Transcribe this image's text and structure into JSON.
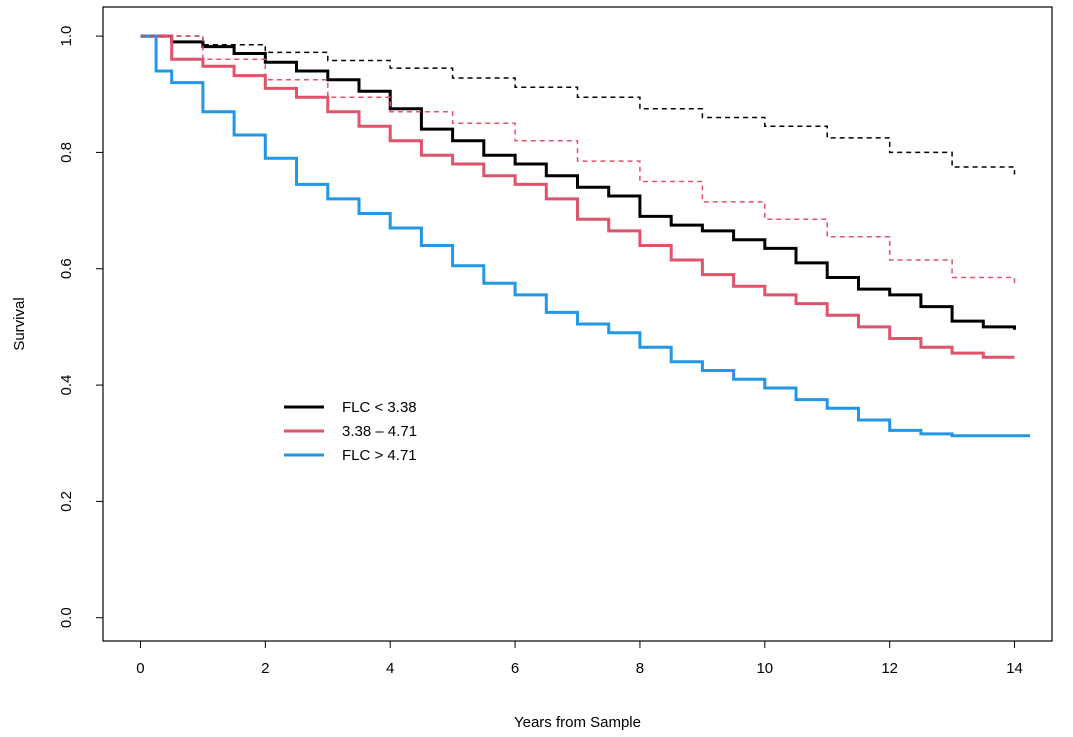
{
  "chart_data": {
    "type": "line",
    "title": "",
    "xlabel": "Years from Sample",
    "ylabel": "Survival",
    "xlim": [
      -0.6,
      14.6
    ],
    "ylim": [
      -0.04,
      1.05
    ],
    "x_ticks": [
      0,
      2,
      4,
      6,
      8,
      10,
      12,
      14
    ],
    "y_ticks": [
      0.0,
      0.2,
      0.4,
      0.6,
      0.8,
      1.0
    ],
    "x_tick_labels": [
      "0",
      "2",
      "4",
      "6",
      "8",
      "10",
      "12",
      "14"
    ],
    "y_tick_labels": [
      "0.0",
      "0.2",
      "0.4",
      "0.6",
      "0.8",
      "1.0"
    ],
    "grid": false,
    "legend_position": "center-left",
    "series": [
      {
        "name": "FLC < 3.38",
        "color": "#000000",
        "style": "solid",
        "points": [
          [
            0,
            1.0
          ],
          [
            0.5,
            0.99
          ],
          [
            1,
            0.982
          ],
          [
            1.5,
            0.97
          ],
          [
            2,
            0.955
          ],
          [
            2.5,
            0.94
          ],
          [
            3,
            0.925
          ],
          [
            3.5,
            0.905
          ],
          [
            4,
            0.875
          ],
          [
            4.5,
            0.84
          ],
          [
            5,
            0.82
          ],
          [
            5.5,
            0.795
          ],
          [
            6,
            0.78
          ],
          [
            6.5,
            0.76
          ],
          [
            7,
            0.74
          ],
          [
            7.5,
            0.725
          ],
          [
            8,
            0.69
          ],
          [
            8.5,
            0.675
          ],
          [
            9,
            0.665
          ],
          [
            9.5,
            0.65
          ],
          [
            10,
            0.635
          ],
          [
            10.5,
            0.61
          ],
          [
            11,
            0.585
          ],
          [
            11.5,
            0.565
          ],
          [
            12,
            0.555
          ],
          [
            12.5,
            0.535
          ],
          [
            13,
            0.51
          ],
          [
            13.5,
            0.5
          ],
          [
            14,
            0.495
          ]
        ]
      },
      {
        "name": "3.38 – 4.71",
        "color": "#DF536B",
        "style": "solid",
        "points": [
          [
            0,
            1.0
          ],
          [
            0.5,
            0.96
          ],
          [
            1,
            0.948
          ],
          [
            1.5,
            0.932
          ],
          [
            2,
            0.91
          ],
          [
            2.5,
            0.895
          ],
          [
            3,
            0.87
          ],
          [
            3.5,
            0.845
          ],
          [
            4,
            0.82
          ],
          [
            4.5,
            0.795
          ],
          [
            5,
            0.78
          ],
          [
            5.5,
            0.76
          ],
          [
            6,
            0.745
          ],
          [
            6.5,
            0.72
          ],
          [
            7,
            0.685
          ],
          [
            7.5,
            0.665
          ],
          [
            8,
            0.64
          ],
          [
            8.5,
            0.615
          ],
          [
            9,
            0.59
          ],
          [
            9.5,
            0.57
          ],
          [
            10,
            0.555
          ],
          [
            10.5,
            0.54
          ],
          [
            11,
            0.52
          ],
          [
            11.5,
            0.5
          ],
          [
            12,
            0.48
          ],
          [
            12.5,
            0.465
          ],
          [
            13,
            0.455
          ],
          [
            13.5,
            0.448
          ],
          [
            14,
            0.448
          ]
        ]
      },
      {
        "name": "FLC > 4.71",
        "color": "#2297E6",
        "style": "solid",
        "points": [
          [
            0,
            1.0
          ],
          [
            0.25,
            0.94
          ],
          [
            0.5,
            0.92
          ],
          [
            1,
            0.87
          ],
          [
            1.5,
            0.83
          ],
          [
            2,
            0.79
          ],
          [
            2.5,
            0.745
          ],
          [
            3,
            0.72
          ],
          [
            3.5,
            0.695
          ],
          [
            4,
            0.67
          ],
          [
            4.5,
            0.64
          ],
          [
            5,
            0.605
          ],
          [
            5.5,
            0.575
          ],
          [
            6,
            0.555
          ],
          [
            6.5,
            0.525
          ],
          [
            7,
            0.505
          ],
          [
            7.5,
            0.49
          ],
          [
            8,
            0.465
          ],
          [
            8.5,
            0.44
          ],
          [
            9,
            0.425
          ],
          [
            9.5,
            0.41
          ],
          [
            10,
            0.395
          ],
          [
            10.5,
            0.375
          ],
          [
            11,
            0.36
          ],
          [
            11.5,
            0.34
          ],
          [
            12,
            0.322
          ],
          [
            12.5,
            0.316
          ],
          [
            13,
            0.313
          ],
          [
            13.5,
            0.313
          ],
          [
            14.25,
            0.313
          ]
        ]
      },
      {
        "name": "",
        "color": "#000000",
        "style": "dashed",
        "points": [
          [
            0,
            1.0
          ],
          [
            1,
            0.985
          ],
          [
            2,
            0.972
          ],
          [
            3,
            0.958
          ],
          [
            4,
            0.945
          ],
          [
            5,
            0.928
          ],
          [
            6,
            0.912
          ],
          [
            7,
            0.895
          ],
          [
            8,
            0.875
          ],
          [
            9,
            0.86
          ],
          [
            10,
            0.845
          ],
          [
            11,
            0.825
          ],
          [
            12,
            0.8
          ],
          [
            13,
            0.775
          ],
          [
            14,
            0.762
          ]
        ]
      },
      {
        "name": "",
        "color": "#DF536B",
        "style": "dashed",
        "points": [
          [
            0,
            1.0
          ],
          [
            1,
            0.96
          ],
          [
            2,
            0.925
          ],
          [
            3,
            0.895
          ],
          [
            4,
            0.87
          ],
          [
            5,
            0.85
          ],
          [
            6,
            0.82
          ],
          [
            7,
            0.785
          ],
          [
            8,
            0.75
          ],
          [
            9,
            0.715
          ],
          [
            10,
            0.685
          ],
          [
            11,
            0.655
          ],
          [
            12,
            0.615
          ],
          [
            13,
            0.585
          ],
          [
            14,
            0.572
          ]
        ]
      }
    ]
  }
}
